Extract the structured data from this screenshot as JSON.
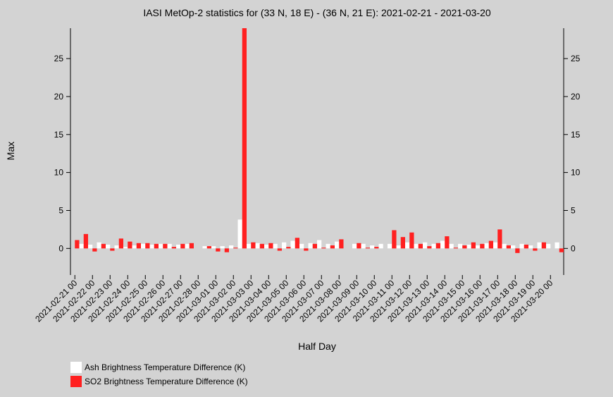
{
  "chart_data": {
    "type": "bar",
    "title": "IASI MetOp-2 statistics for (33 N, 18 E) - (36 N, 21 E): 2021-02-21 - 2021-03-20",
    "x_label": "Half Day",
    "y_label": "Max",
    "categories": [
      "2021-02-21 00",
      null,
      "2021-02-22 00",
      null,
      "2021-02-23 00",
      null,
      "2021-02-24 00",
      null,
      "2021-02-25 00",
      null,
      "2021-02-26 00",
      null,
      "2021-02-27 00",
      null,
      "2021-02-28 00",
      null,
      "2021-03-01 00",
      null,
      "2021-03-02 00",
      null,
      "2021-03-03 00",
      null,
      "2021-03-04 00",
      null,
      "2021-03-05 00",
      null,
      "2021-03-06 00",
      null,
      "2021-03-07 00",
      null,
      "2021-03-08 00",
      null,
      "2021-03-09 00",
      null,
      "2021-03-10 00",
      null,
      "2021-03-11 00",
      null,
      "2021-03-12 00",
      null,
      "2021-03-13 00",
      null,
      "2021-03-14 00",
      null,
      "2021-03-15 00",
      null,
      "2021-03-16 00",
      null,
      "2021-03-17 00",
      null,
      "2021-03-18 00",
      null,
      "2021-03-19 00",
      null,
      "2021-03-20 00",
      null
    ],
    "series": [
      {
        "name": "Ash Brightness Temperature Difference (K)",
        "color": "#ffffff",
        "values": [
          null,
          0.6,
          0.5,
          0.8,
          0.5,
          0.4,
          0.2,
          0.4,
          0.6,
          0.5,
          0.6,
          0.6,
          0.5,
          0.6,
          null,
          0.3,
          0.3,
          0.3,
          0.4,
          3.8,
          0.6,
          0.7,
          0.5,
          0.6,
          0.8,
          1.0,
          0.6,
          0.7,
          1.1,
          0.6,
          0.9,
          null,
          0.6,
          0.6,
          0.4,
          0.6,
          0.6,
          0.4,
          0.8,
          0.6,
          0.8,
          0.6,
          1.0,
          0.6,
          0.6,
          0.5,
          0.4,
          0.7,
          0.8,
          0.6,
          0.4,
          0.6,
          0.4,
          0.8,
          0.6,
          0.8
        ]
      },
      {
        "name": "SO2 Brightness Temperature Difference (K)",
        "color": "#ff2020",
        "values": [
          1.1,
          1.9,
          -0.4,
          0.6,
          -0.3,
          1.3,
          0.9,
          0.7,
          0.7,
          0.6,
          0.6,
          0.2,
          0.6,
          0.7,
          null,
          0.3,
          -0.4,
          -0.5,
          0.1,
          29,
          0.8,
          0.6,
          0.7,
          -0.3,
          0.2,
          1.4,
          -0.3,
          0.6,
          0.1,
          0.4,
          1.2,
          null,
          0.7,
          0.1,
          0.2,
          0.0,
          2.4,
          1.5,
          2.1,
          0.6,
          0.3,
          0.7,
          1.6,
          0.1,
          0.4,
          0.8,
          0.6,
          1.0,
          2.5,
          0.4,
          -0.6,
          0.5,
          -0.3,
          0.8,
          0.0,
          -0.5
        ]
      }
    ],
    "ylim": [
      -3.5,
      29
    ],
    "yticks": [
      0,
      5,
      10,
      15,
      20,
      25
    ]
  }
}
